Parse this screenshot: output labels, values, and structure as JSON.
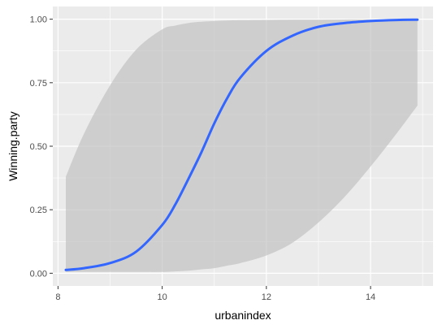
{
  "chart_data": {
    "type": "line",
    "title": "",
    "xlabel": "urbanindex",
    "ylabel": "Winning.party",
    "xlim": [
      7.9,
      15.2
    ],
    "ylim": [
      -0.05,
      1.05
    ],
    "x_ticks": [
      8,
      10,
      12,
      14
    ],
    "x_tick_labels": [
      "8",
      "10",
      "12",
      "14"
    ],
    "y_ticks": [
      0,
      0.25,
      0.5,
      0.75,
      1
    ],
    "y_tick_labels": [
      "0.00",
      "0.25",
      "0.50",
      "0.75",
      "1.00"
    ],
    "grid": true,
    "legend": "none",
    "series": [
      {
        "x": [
          8.15,
          8.5,
          9.0,
          9.5,
          10.0,
          10.25,
          10.5,
          10.75,
          11.0,
          11.25,
          11.5,
          12.0,
          12.5,
          13.0,
          13.5,
          14.0,
          14.5,
          14.9
        ],
        "y": [
          0.013,
          0.02,
          0.04,
          0.085,
          0.19,
          0.27,
          0.37,
          0.475,
          0.59,
          0.69,
          0.77,
          0.875,
          0.935,
          0.97,
          0.985,
          0.993,
          0.997,
          0.998
        ],
        "ymin": [
          0.005,
          0.005,
          0.005,
          0.005,
          0.005,
          0.007,
          0.01,
          0.015,
          0.02,
          0.03,
          0.04,
          0.07,
          0.12,
          0.2,
          0.3,
          0.42,
          0.55,
          0.66
        ],
        "ymax": [
          0.38,
          0.55,
          0.74,
          0.88,
          0.96,
          0.975,
          0.985,
          0.99,
          0.993,
          0.995,
          0.996,
          0.997,
          0.998,
          0.998,
          0.999,
          0.999,
          0.999,
          0.999
        ]
      }
    ],
    "colors": {
      "line": "#3366ff",
      "ribbon": "#bfbfbf",
      "panel": "#ebebeb",
      "grid": "#ffffff",
      "tick": "#333333"
    }
  }
}
